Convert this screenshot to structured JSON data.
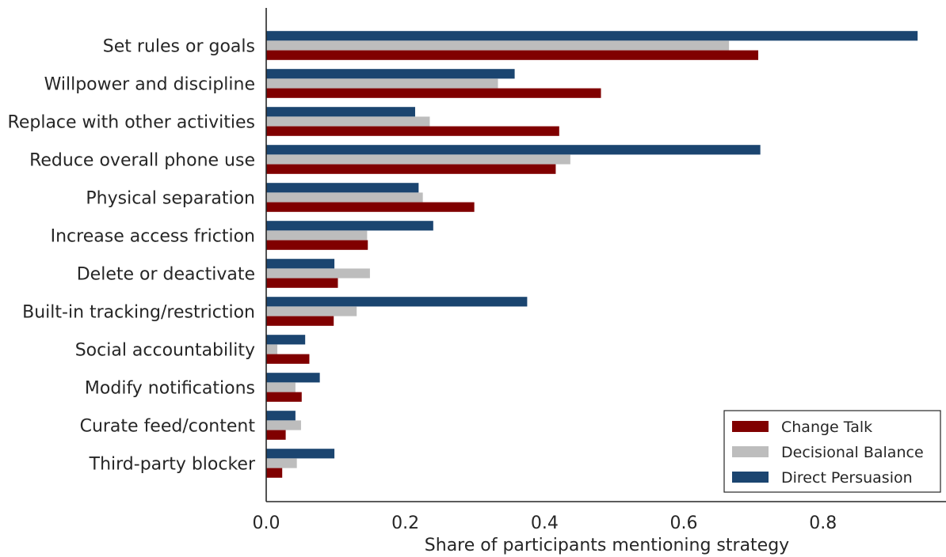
{
  "chart_data": {
    "type": "bar",
    "orientation": "horizontal",
    "title": "",
    "xlabel": "Share of participants mentioning strategy",
    "ylabel": "",
    "xlim": [
      0,
      0.98
    ],
    "xticks": [
      0.0,
      0.2,
      0.4,
      0.6,
      0.8
    ],
    "xtick_labels": [
      "0.0",
      "0.2",
      "0.4",
      "0.6",
      "0.8"
    ],
    "grid": false,
    "legend_position": "bottom-right",
    "categories": [
      "Set rules or goals",
      "Willpower and discipline",
      "Replace with other activities",
      "Reduce overall phone use",
      "Physical separation",
      "Increase access friction",
      "Delete or deactivate",
      "Built-in tracking/restriction",
      "Social accountability",
      "Modify notifications",
      "Curate feed/content",
      "Third-party blocker"
    ],
    "series": [
      {
        "name": "Change Talk",
        "color": "#800000",
        "values": [
          0.707,
          0.481,
          0.421,
          0.416,
          0.299,
          0.146,
          0.103,
          0.097,
          0.062,
          0.051,
          0.028,
          0.023
        ]
      },
      {
        "name": "Decisional Balance",
        "color": "#bdbdbd",
        "values": [
          0.665,
          0.333,
          0.235,
          0.437,
          0.225,
          0.145,
          0.149,
          0.13,
          0.016,
          0.042,
          0.05,
          0.044
        ]
      },
      {
        "name": "Direct Persuasion",
        "color": "#1b4570",
        "values": [
          0.936,
          0.357,
          0.214,
          0.71,
          0.219,
          0.24,
          0.098,
          0.375,
          0.056,
          0.077,
          0.042,
          0.098
        ]
      }
    ],
    "legend_order": [
      "Change Talk",
      "Decisional Balance",
      "Direct Persuasion"
    ]
  }
}
